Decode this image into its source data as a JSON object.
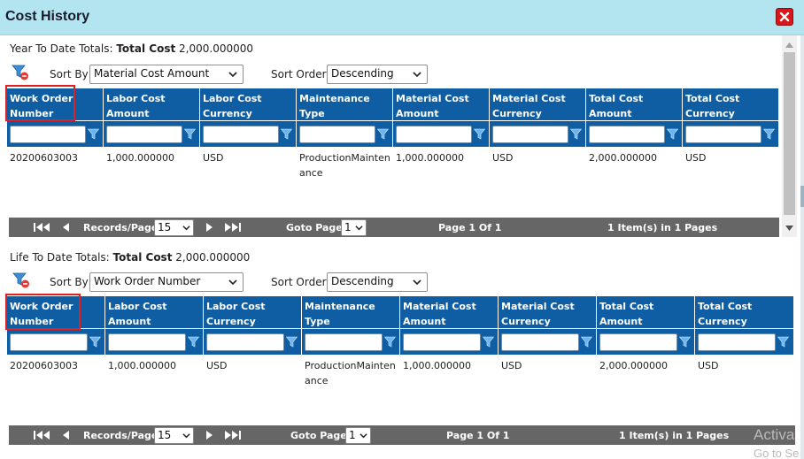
{
  "dialog": {
    "title": "Cost History"
  },
  "ytd": {
    "totals_prefix": "Year To Date Totals:",
    "totals_label": "Total Cost",
    "totals_value": "2,000.000000",
    "sort_by_label": "Sort By",
    "sort_by_value": "Material Cost Amount",
    "sort_order_label": "Sort Order",
    "sort_order_value": "Descending",
    "columns": [
      "Work Order Number",
      "Labor Cost Amount",
      "Labor Cost Currency",
      "Maintenance Type",
      "Material Cost Amount",
      "Material Cost Currency",
      "Total Cost Amount",
      "Total Cost Currency"
    ],
    "rows": [
      [
        "20200603003",
        "1,000.000000",
        "USD",
        "ProductionMaintenance",
        "1,000.000000",
        "USD",
        "2,000.000000",
        "USD"
      ]
    ],
    "pager": {
      "records_label": "Records/Page",
      "records_value": "15",
      "goto_label": "Goto Page",
      "goto_value": "1",
      "page_info": "Page 1 Of 1",
      "items_info": "1 Item(s) in 1 Pages"
    }
  },
  "ltd": {
    "totals_prefix": "Life To Date Totals:",
    "totals_label": "Total Cost",
    "totals_value": "2,000.000000",
    "sort_by_label": "Sort By",
    "sort_by_value": "Work Order Number",
    "sort_order_label": "Sort Order",
    "sort_order_value": "Descending",
    "columns": [
      "Work Order Number",
      "Labor Cost Amount",
      "Labor Cost Currency",
      "Maintenance Type",
      "Material Cost Amount",
      "Material Cost Currency",
      "Total Cost Amount",
      "Total Cost Currency"
    ],
    "rows": [
      [
        "20200603003",
        "1,000.000000",
        "USD",
        "ProductionMaintenance",
        "1,000.000000",
        "USD",
        "2,000.000000",
        "USD"
      ]
    ],
    "pager": {
      "records_label": "Records/Page",
      "records_value": "15",
      "goto_label": "Goto Page",
      "goto_value": "1",
      "page_info": "Page 1 Of 1",
      "items_info": "1 Item(s) in 1 Pages"
    }
  },
  "watermark": {
    "line1": "Activa",
    "line2": "Go to Se"
  },
  "colors": {
    "title_bar": "#b3e5f0",
    "grid_header": "#0f5ea4",
    "pager": "#666666",
    "close_button": "#d8161c",
    "highlight": "#e02020"
  },
  "icons": {
    "close": "close-icon",
    "clear_filter": "clear-filter-icon",
    "column_filter": "filter-icon",
    "first_page": "first-page-icon",
    "prev_page": "prev-page-icon",
    "next_page": "next-page-icon",
    "last_page": "last-page-icon"
  }
}
